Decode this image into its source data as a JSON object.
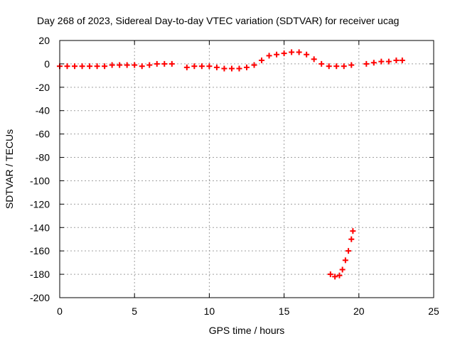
{
  "chart_data": {
    "type": "scatter",
    "title": "Day 268 of 2023, Sidereal Day-to-day VTEC variation (SDTVAR) for receiver ucag",
    "xlabel": "GPS time / hours",
    "ylabel": "SDTVAR / TECUs",
    "xlim": [
      0,
      25
    ],
    "ylim": [
      -200,
      20
    ],
    "xticks": [
      0,
      5,
      10,
      15,
      20,
      25
    ],
    "yticks": [
      20,
      0,
      -20,
      -40,
      -60,
      -80,
      -100,
      -120,
      -140,
      -160,
      -180,
      -200
    ],
    "grid": true,
    "marker": "+",
    "colors": {
      "series": "#ff0000",
      "grid": "#a0a0a0",
      "axis": "#000000"
    },
    "series": [
      {
        "name": "SDTVAR",
        "points": [
          [
            0.0,
            -2
          ],
          [
            0.5,
            -2
          ],
          [
            1.0,
            -2
          ],
          [
            1.5,
            -2
          ],
          [
            2.0,
            -2
          ],
          [
            2.5,
            -2
          ],
          [
            3.0,
            -2
          ],
          [
            3.5,
            -1
          ],
          [
            4.0,
            -1
          ],
          [
            4.5,
            -1
          ],
          [
            5.0,
            -1
          ],
          [
            5.5,
            -2
          ],
          [
            6.0,
            -1
          ],
          [
            6.5,
            0
          ],
          [
            7.0,
            0
          ],
          [
            7.5,
            0
          ],
          [
            8.5,
            -3
          ],
          [
            9.0,
            -2
          ],
          [
            9.5,
            -2
          ],
          [
            10.0,
            -2
          ],
          [
            10.5,
            -3
          ],
          [
            11.0,
            -4
          ],
          [
            11.5,
            -4
          ],
          [
            12.0,
            -4
          ],
          [
            12.5,
            -3
          ],
          [
            13.0,
            -1
          ],
          [
            13.5,
            3
          ],
          [
            14.0,
            7
          ],
          [
            14.5,
            8
          ],
          [
            15.0,
            9
          ],
          [
            15.5,
            10
          ],
          [
            16.0,
            10
          ],
          [
            16.5,
            8
          ],
          [
            17.0,
            4
          ],
          [
            17.5,
            0
          ],
          [
            18.0,
            -2
          ],
          [
            18.5,
            -2
          ],
          [
            19.0,
            -2
          ],
          [
            19.5,
            -1
          ],
          [
            20.5,
            0
          ],
          [
            21.0,
            1
          ],
          [
            21.5,
            2
          ],
          [
            22.0,
            2
          ],
          [
            22.5,
            3
          ],
          [
            22.9,
            3
          ],
          [
            18.1,
            -180
          ],
          [
            18.4,
            -182
          ],
          [
            18.7,
            -181
          ],
          [
            18.9,
            -176
          ],
          [
            19.1,
            -168
          ],
          [
            19.3,
            -160
          ],
          [
            19.5,
            -150
          ],
          [
            19.6,
            -143
          ]
        ]
      }
    ]
  }
}
